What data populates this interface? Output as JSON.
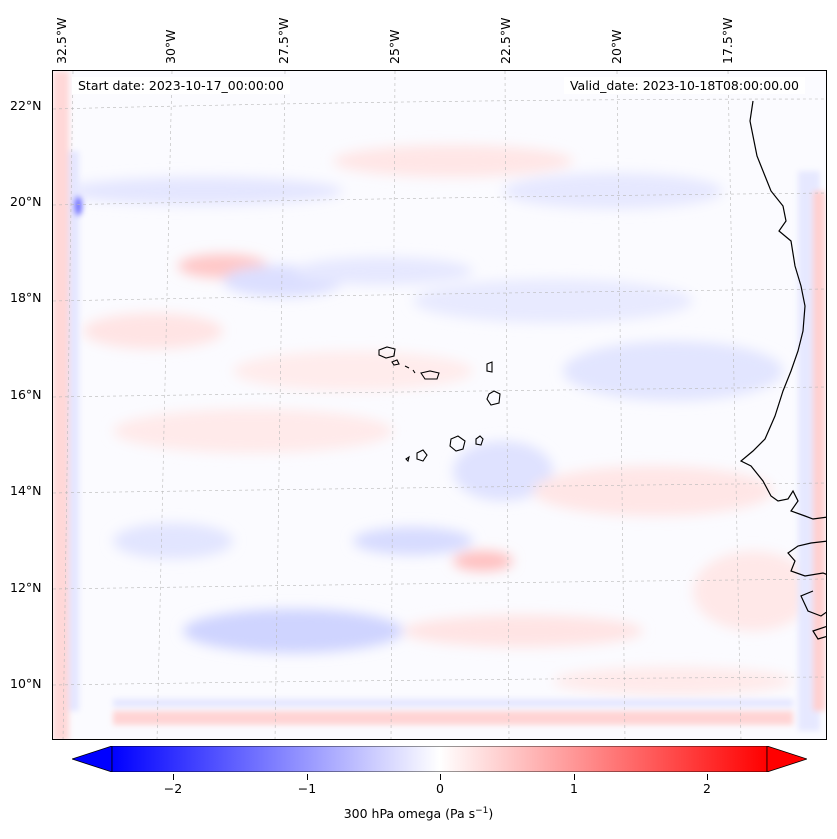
{
  "map": {
    "start_date": "Start date: 2023-10-17_00:00:00",
    "valid_date": "Valid_date: 2023-10-18T08:00:00.00",
    "longitude_labels": [
      "32.5°W",
      "30°W",
      "27.5°W",
      "25°W",
      "22.5°W",
      "20°W",
      "17.5°W"
    ],
    "latitude_labels": [
      "22°N",
      "20°N",
      "18°N",
      "16°N",
      "14°N",
      "12°N",
      "10°N"
    ],
    "field": "300 hPa omega",
    "colormap": "bwr"
  },
  "colorbar": {
    "ticks": [
      "−2",
      "−1",
      "0",
      "1",
      "2"
    ],
    "label": "300 hPa omega (Pa s",
    "label_exp": "−1",
    "label_close": ")",
    "min_color": "#0000ff",
    "mid_color": "#ffffff",
    "max_color": "#ff0000"
  }
}
